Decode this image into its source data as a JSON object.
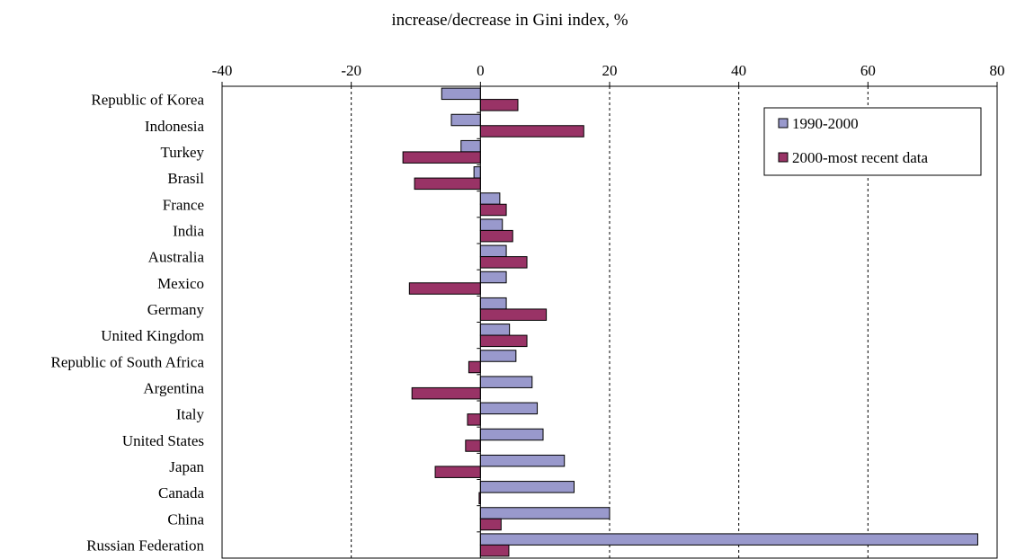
{
  "chart_data": {
    "type": "bar",
    "orientation": "horizontal",
    "title": "increase/decrease in Gini index, %",
    "xlabel": "",
    "ylabel": "",
    "xlim": [
      -40,
      80
    ],
    "xticks": [
      -40,
      -20,
      0,
      20,
      40,
      60,
      80
    ],
    "grid": "vertical dashed",
    "legend_position": "top-right",
    "categories": [
      "Republic of Korea",
      "Indonesia",
      "Turkey",
      "Brasil",
      "France",
      "India",
      "Australia",
      "Mexico",
      "Germany",
      "United Kingdom",
      "Republic of South Africa",
      "Argentina",
      "Italy",
      "United States",
      "Japan",
      "Canada",
      "China",
      "Russian Federation"
    ],
    "series": [
      {
        "name": "1990-2000",
        "color": "#9999cc",
        "values": [
          -6,
          -4.5,
          -3,
          -1,
          3,
          3.4,
          4,
          4,
          4,
          4.5,
          5.5,
          8,
          8.8,
          9.7,
          13,
          14.5,
          20,
          77
        ]
      },
      {
        "name": "2000-most recent data",
        "color": "#993366",
        "values": [
          5.8,
          16,
          -12,
          -10.2,
          4,
          5,
          7.2,
          -11,
          10.2,
          7.2,
          -1.8,
          -10.6,
          -2,
          -2.3,
          -7,
          -0.2,
          3.2,
          4.4
        ]
      }
    ]
  }
}
